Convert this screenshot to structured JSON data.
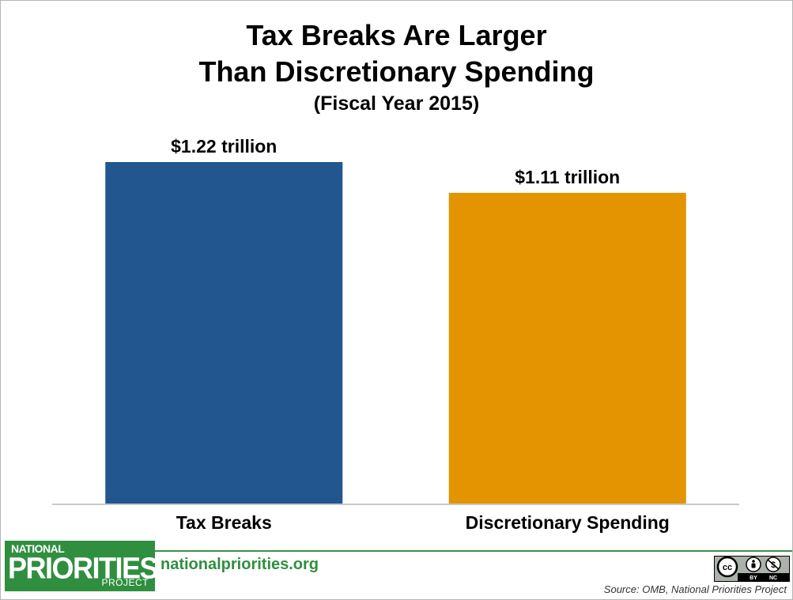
{
  "chart_data": {
    "type": "bar",
    "title": "Tax Breaks Are Larger Than Discretionary Spending",
    "title_lines": [
      "Tax Breaks Are Larger",
      "Than Discretionary Spending"
    ],
    "subtitle": "(Fiscal Year 2015)",
    "categories": [
      "Tax Breaks",
      "Discretionary Spending"
    ],
    "values": [
      1.22,
      1.11
    ],
    "data_labels": [
      "$1.22 trillion",
      "$1.11 trillion"
    ],
    "colors": [
      "#21568f",
      "#e39400"
    ],
    "units": "trillion dollars",
    "ylim": [
      0,
      1.22
    ],
    "grid": false,
    "legend": "none"
  },
  "footer": {
    "logo": {
      "line1": "NATIONAL",
      "line2": "PRIORITIES",
      "line3": "PROJECT",
      "color": "#2f8f3f"
    },
    "site_link": "nationalpriorities.org",
    "license_icon": "cc-by-nc-icon",
    "license_labels": [
      "cc",
      "BY",
      "NC"
    ],
    "source": "Source: OMB, National Priorities Project"
  }
}
